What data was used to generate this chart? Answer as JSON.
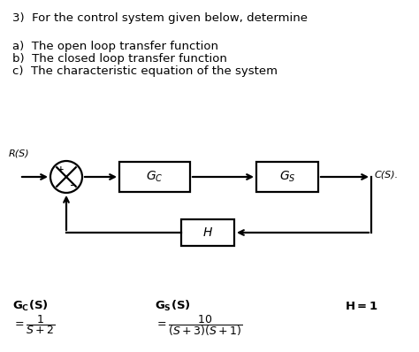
{
  "bg_color": "#ffffff",
  "text_color": "#000000",
  "title": "3)  For the control system given below, determine",
  "items": [
    "a)  The open loop transfer function",
    "b)  The closed loop transfer function",
    "c)  The characteristic equation of the system"
  ],
  "fig_w": 4.74,
  "fig_h": 3.98,
  "dpi": 100
}
